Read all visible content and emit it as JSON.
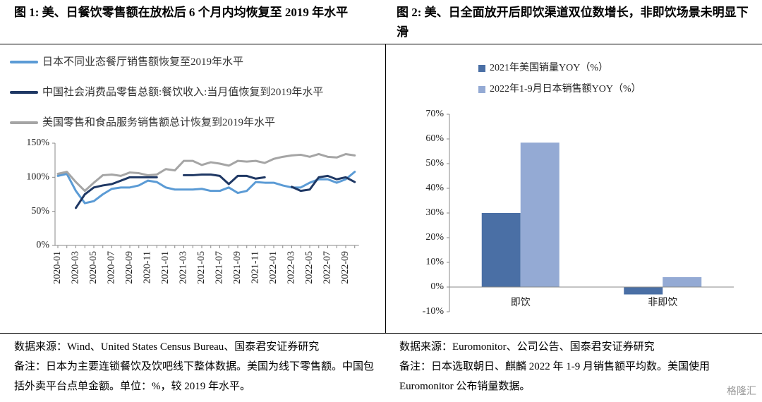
{
  "chart_data": [
    {
      "type": "line",
      "title": "图 1: 美、日餐饮零售额在放松后 6 个月内均恢复至 2019 年水平",
      "categories": [
        "2020-01",
        null,
        "2020-03",
        null,
        "2020-05",
        null,
        "2020-07",
        null,
        "2020-09",
        null,
        "2020-11",
        null,
        "2021-01",
        null,
        "2021-03",
        null,
        "2021-05",
        null,
        "2021-07",
        null,
        "2021-09",
        null,
        "2021-11",
        null,
        "2022-01",
        null,
        "2022-03",
        null,
        "2022-05",
        null,
        "2022-07",
        null,
        "2022-09",
        null
      ],
      "series": [
        {
          "name": "日本不同业态餐厅销售额恢复至2019年水平",
          "color": "#5b9bd5",
          "values": [
            102,
            105,
            80,
            62,
            65,
            75,
            83,
            85,
            85,
            88,
            95,
            93,
            85,
            82,
            82,
            82,
            83,
            80,
            80,
            85,
            77,
            80,
            93,
            92,
            92,
            88,
            85,
            85,
            92,
            97,
            97,
            92,
            97,
            108
          ]
        },
        {
          "name": "中国社会消费品零售总额:餐饮收入:当月值恢复到2019年水平",
          "color": "#1f3864",
          "values": [
            null,
            null,
            55,
            75,
            85,
            88,
            90,
            95,
            100,
            100,
            100,
            100,
            null,
            null,
            103,
            103,
            104,
            104,
            102,
            90,
            102,
            102,
            98,
            100,
            null,
            null,
            86,
            80,
            82,
            100,
            102,
            97,
            100,
            93
          ]
        },
        {
          "name": "美国零售和食品服务销售额总计恢复到2019年水平",
          "color": "#a5a5a5",
          "values": [
            105,
            108,
            93,
            80,
            92,
            103,
            104,
            102,
            107,
            106,
            103,
            104,
            112,
            110,
            124,
            124,
            118,
            122,
            120,
            117,
            124,
            123,
            124,
            121,
            127,
            130,
            132,
            133,
            130,
            134,
            130,
            129,
            134,
            132
          ]
        }
      ],
      "ylim": [
        0,
        150
      ],
      "yticks": [
        {
          "value": 0,
          "label": "0%"
        },
        {
          "value": 50,
          "label": "50%"
        },
        {
          "value": 100,
          "label": "100%"
        },
        {
          "value": 150,
          "label": "150%"
        }
      ],
      "source": "数据来源：Wind、United States Census Bureau、国泰君安证券研究",
      "note": "备注：日本为主要连锁餐饮及饮吧线下整体数据。美国为线下零售额。中国包括外卖平台点单金额。单位：%，较 2019 年水平。"
    },
    {
      "type": "bar",
      "title": "图 2: 美、日全面放开后即饮渠道双位数增长，非即饮场景未明显下滑",
      "categories": [
        "即饮",
        "非即饮"
      ],
      "series": [
        {
          "name": "2021年美国销量YOY（%）",
          "color": "#4a6fa5",
          "values": [
            30,
            -3
          ]
        },
        {
          "name": "2022年1-9月日本销售额YOY（%）",
          "color": "#94aad4",
          "values": [
            58.5,
            4
          ]
        }
      ],
      "ylim": [
        -10,
        70
      ],
      "yticks": [
        {
          "value": -10,
          "label": "-10%"
        },
        {
          "value": 0,
          "label": "0%"
        },
        {
          "value": 10,
          "label": "10%"
        },
        {
          "value": 20,
          "label": "20%"
        },
        {
          "value": 30,
          "label": "30%"
        },
        {
          "value": 40,
          "label": "40%"
        },
        {
          "value": 50,
          "label": "50%"
        },
        {
          "value": 60,
          "label": "60%"
        },
        {
          "value": 70,
          "label": "70%"
        }
      ],
      "source": "数据来源：Euromonitor、公司公告、国泰君安证券研究",
      "note": "备注：日本选取朝日、麒麟 2022 年 1-9 月销售额平均数。美国使用 Euromonitor 公布销量数据。"
    }
  ],
  "watermark": "格隆汇"
}
